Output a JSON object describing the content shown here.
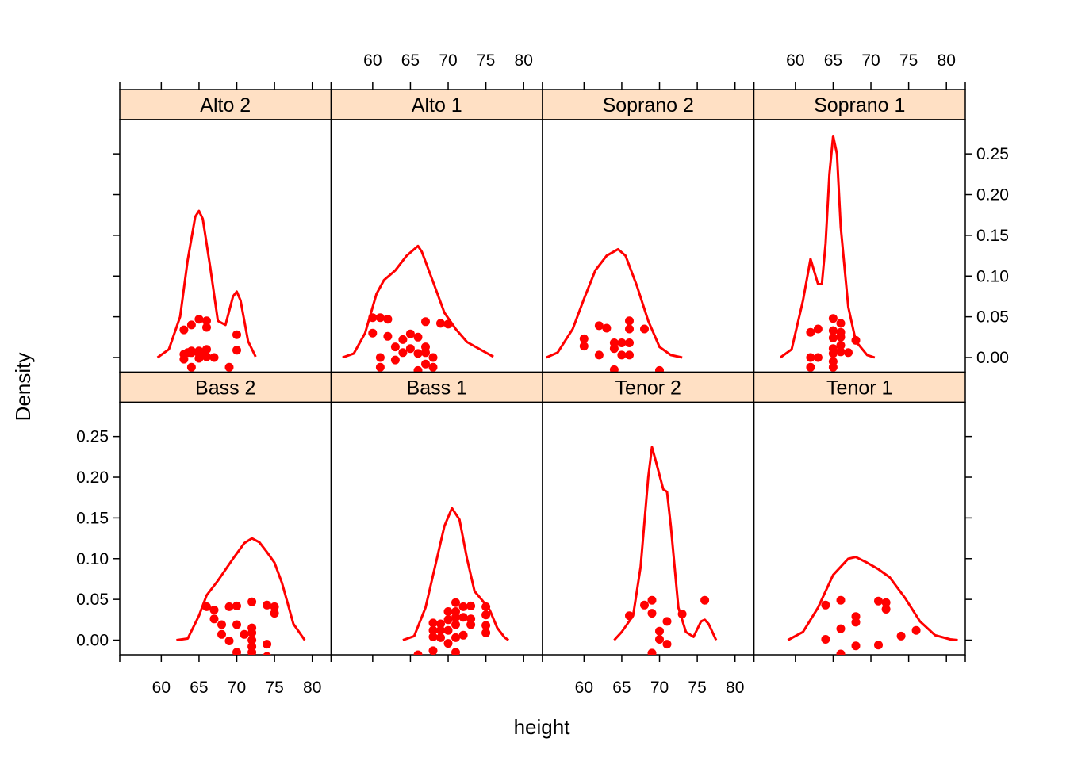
{
  "chart_data": {
    "type": "area",
    "xlabel": "height",
    "ylabel": "Density",
    "xlim": [
      54.5,
      82.5
    ],
    "ylim": [
      -0.018,
      0.292
    ],
    "x_ticks": [
      60,
      65,
      70,
      75,
      80
    ],
    "y_ticks": [
      0.0,
      0.05,
      0.1,
      0.15,
      0.2,
      0.25
    ],
    "x_tick_labels": [
      "60",
      "65",
      "70",
      "75",
      "80"
    ],
    "y_tick_labels": [
      "0.00",
      "0.05",
      "0.10",
      "0.15",
      "0.20",
      "0.25"
    ],
    "colors": {
      "line": "#ff0000",
      "points": "#ff0000",
      "strip": "#ffe0c4",
      "frame": "#000000"
    },
    "grid": false,
    "panels": [
      {
        "name": "Alto 2",
        "density": [
          [
            59.5,
            0.0
          ],
          [
            61,
            0.01
          ],
          [
            62.5,
            0.05
          ],
          [
            63.5,
            0.12
          ],
          [
            64.5,
            0.173
          ],
          [
            65,
            0.18
          ],
          [
            65.5,
            0.17
          ],
          [
            66.5,
            0.11
          ],
          [
            67.5,
            0.045
          ],
          [
            68.5,
            0.04
          ],
          [
            69.5,
            0.075
          ],
          [
            70,
            0.081
          ],
          [
            70.5,
            0.07
          ],
          [
            71.5,
            0.02
          ],
          [
            72.5,
            0.001
          ]
        ],
        "points": [
          [
            63,
            0.004
          ],
          [
            63,
            -0.002
          ],
          [
            63,
            0.034
          ],
          [
            63.5,
            0.006
          ],
          [
            64,
            0.008
          ],
          [
            64,
            0.006
          ],
          [
            64,
            0.04
          ],
          [
            65,
            0.005
          ],
          [
            65,
            0.008
          ],
          [
            65,
            -0.001
          ],
          [
            65,
            0.047
          ],
          [
            65.5,
            0.006
          ],
          [
            66,
            0.01
          ],
          [
            66,
            0.001
          ],
          [
            66,
            0.045
          ],
          [
            66,
            0.037
          ],
          [
            66,
            0.001
          ],
          [
            67,
            0.0
          ],
          [
            64,
            -0.012
          ],
          [
            69,
            -0.012
          ],
          [
            70,
            0.009
          ],
          [
            70,
            0.028
          ]
        ]
      },
      {
        "name": "Alto 1",
        "density": [
          [
            56,
            0.0
          ],
          [
            57.5,
            0.005
          ],
          [
            59,
            0.03
          ],
          [
            60.5,
            0.078
          ],
          [
            61.5,
            0.095
          ],
          [
            63,
            0.107
          ],
          [
            64.5,
            0.125
          ],
          [
            66,
            0.137
          ],
          [
            66.5,
            0.13
          ],
          [
            68,
            0.093
          ],
          [
            69.5,
            0.055
          ],
          [
            71,
            0.035
          ],
          [
            72.5,
            0.019
          ],
          [
            75,
            0.006
          ],
          [
            76,
            0.001
          ]
        ],
        "points": [
          [
            60,
            0.03
          ],
          [
            60,
            0.049
          ],
          [
            61,
            0.049
          ],
          [
            62,
            0.047
          ],
          [
            62,
            0.026
          ],
          [
            61,
            0.0
          ],
          [
            61,
            -0.012
          ],
          [
            63,
            0.013
          ],
          [
            63,
            -0.003
          ],
          [
            64,
            0.022
          ],
          [
            64,
            0.006
          ],
          [
            65,
            0.029
          ],
          [
            65,
            0.011
          ],
          [
            66,
            -0.016
          ],
          [
            66,
            0.025
          ],
          [
            66,
            0.005
          ],
          [
            67,
            0.006
          ],
          [
            67,
            0.013
          ],
          [
            67,
            -0.008
          ],
          [
            67,
            0.044
          ],
          [
            68,
            -0.012
          ],
          [
            68,
            0.0
          ],
          [
            69,
            0.042
          ],
          [
            70,
            0.041
          ]
        ]
      },
      {
        "name": "Soprano 2",
        "density": [
          [
            55,
            0.0
          ],
          [
            56.5,
            0.006
          ],
          [
            58.5,
            0.035
          ],
          [
            60,
            0.072
          ],
          [
            61.5,
            0.107
          ],
          [
            63,
            0.125
          ],
          [
            64.5,
            0.133
          ],
          [
            65.5,
            0.125
          ],
          [
            67,
            0.088
          ],
          [
            68.5,
            0.045
          ],
          [
            70,
            0.013
          ],
          [
            71.5,
            0.003
          ],
          [
            73,
            0.0
          ]
        ],
        "points": [
          [
            60,
            0.023
          ],
          [
            60,
            0.014
          ],
          [
            62,
            0.003
          ],
          [
            62,
            0.039
          ],
          [
            63,
            0.036
          ],
          [
            64,
            0.018
          ],
          [
            64,
            0.011
          ],
          [
            64,
            -0.015
          ],
          [
            65,
            0.018
          ],
          [
            65,
            0.003
          ],
          [
            66,
            0.045
          ],
          [
            66,
            0.035
          ],
          [
            66,
            0.018
          ],
          [
            66,
            0.003
          ],
          [
            68,
            0.035
          ],
          [
            70,
            -0.016
          ]
        ]
      },
      {
        "name": "Soprano 1",
        "density": [
          [
            58,
            0.0
          ],
          [
            59.5,
            0.01
          ],
          [
            61,
            0.07
          ],
          [
            62,
            0.121
          ],
          [
            63,
            0.09
          ],
          [
            63.5,
            0.09
          ],
          [
            64,
            0.14
          ],
          [
            64.5,
            0.225
          ],
          [
            65,
            0.272
          ],
          [
            65.5,
            0.25
          ],
          [
            66,
            0.16
          ],
          [
            67,
            0.062
          ],
          [
            68,
            0.02
          ],
          [
            69.5,
            0.003
          ],
          [
            70.5,
            0.0
          ]
        ],
        "points": [
          [
            62,
            0.031
          ],
          [
            62,
            0.0
          ],
          [
            62,
            -0.012
          ],
          [
            63,
            0.035
          ],
          [
            63,
            0.0
          ],
          [
            65,
            0.048
          ],
          [
            65,
            0.033
          ],
          [
            65,
            0.024
          ],
          [
            65,
            0.011
          ],
          [
            65,
            0.005
          ],
          [
            65,
            -0.005
          ],
          [
            65,
            -0.012
          ],
          [
            66,
            0.042
          ],
          [
            66,
            0.031
          ],
          [
            66,
            0.025
          ],
          [
            66,
            0.015
          ],
          [
            66,
            0.007
          ],
          [
            67,
            0.006
          ],
          [
            68,
            0.021
          ]
        ]
      },
      {
        "name": "Bass 2",
        "density": [
          [
            62,
            0.0
          ],
          [
            63.5,
            0.002
          ],
          [
            65,
            0.03
          ],
          [
            66,
            0.055
          ],
          [
            67.5,
            0.073
          ],
          [
            69.5,
            0.1
          ],
          [
            71,
            0.119
          ],
          [
            72,
            0.125
          ],
          [
            73,
            0.12
          ],
          [
            74,
            0.108
          ],
          [
            75,
            0.095
          ],
          [
            76,
            0.07
          ],
          [
            77.5,
            0.02
          ],
          [
            79,
            0.0
          ]
        ],
        "points": [
          [
            66,
            0.041
          ],
          [
            67,
            0.037
          ],
          [
            67,
            0.026
          ],
          [
            68,
            0.019
          ],
          [
            68,
            0.007
          ],
          [
            69,
            0.041
          ],
          [
            69,
            -0.001
          ],
          [
            70,
            0.042
          ],
          [
            70,
            0.019
          ],
          [
            70,
            -0.015
          ],
          [
            71,
            0.007
          ],
          [
            72,
            0.047
          ],
          [
            72,
            0.015
          ],
          [
            72,
            0.009
          ],
          [
            72,
            0.0
          ],
          [
            72,
            -0.008
          ],
          [
            72,
            -0.015
          ],
          [
            74,
            0.043
          ],
          [
            74,
            -0.005
          ],
          [
            74,
            -0.02
          ],
          [
            75,
            0.041
          ],
          [
            75,
            0.033
          ]
        ]
      },
      {
        "name": "Bass 1",
        "density": [
          [
            64,
            0.0
          ],
          [
            65.5,
            0.005
          ],
          [
            67,
            0.04
          ],
          [
            68.5,
            0.1
          ],
          [
            69.5,
            0.14
          ],
          [
            70.5,
            0.162
          ],
          [
            71.5,
            0.148
          ],
          [
            72.5,
            0.1
          ],
          [
            73.5,
            0.06
          ],
          [
            74.5,
            0.049
          ],
          [
            75.5,
            0.037
          ],
          [
            76.5,
            0.015
          ],
          [
            77.5,
            0.003
          ],
          [
            78,
            0.0
          ]
        ],
        "points": [
          [
            66,
            -0.018
          ],
          [
            68,
            0.021
          ],
          [
            68,
            0.012
          ],
          [
            68,
            0.004
          ],
          [
            68,
            -0.013
          ],
          [
            69,
            0.02
          ],
          [
            69,
            0.012
          ],
          [
            69,
            0.003
          ],
          [
            70,
            0.035
          ],
          [
            70,
            0.025
          ],
          [
            70,
            0.012
          ],
          [
            70,
            -0.004
          ],
          [
            71,
            0.046
          ],
          [
            71,
            0.035
          ],
          [
            71,
            0.028
          ],
          [
            71,
            0.019
          ],
          [
            71,
            0.003
          ],
          [
            71,
            -0.015
          ],
          [
            72,
            0.041
          ],
          [
            72,
            0.028
          ],
          [
            72,
            0.006
          ],
          [
            73,
            0.042
          ],
          [
            73,
            0.026
          ],
          [
            73,
            0.019
          ],
          [
            75,
            0.041
          ],
          [
            75,
            0.031
          ],
          [
            75,
            0.018
          ],
          [
            75,
            0.009
          ],
          [
            75,
            -0.024
          ]
        ]
      },
      {
        "name": "Tenor 2",
        "density": [
          [
            64,
            0.0
          ],
          [
            65,
            0.01
          ],
          [
            66.5,
            0.03
          ],
          [
            67.5,
            0.09
          ],
          [
            68.5,
            0.2
          ],
          [
            69,
            0.237
          ],
          [
            69.5,
            0.22
          ],
          [
            70.5,
            0.185
          ],
          [
            71,
            0.182
          ],
          [
            71.5,
            0.14
          ],
          [
            72.5,
            0.04
          ],
          [
            73.5,
            0.01
          ],
          [
            74.5,
            0.004
          ],
          [
            75.5,
            0.023
          ],
          [
            76,
            0.025
          ],
          [
            76.5,
            0.02
          ],
          [
            77.5,
            0.0
          ]
        ],
        "points": [
          [
            66,
            0.03
          ],
          [
            68,
            0.043
          ],
          [
            69,
            0.049
          ],
          [
            69,
            0.033
          ],
          [
            69,
            -0.016
          ],
          [
            70,
            0.011
          ],
          [
            70,
            0.001
          ],
          [
            71,
            -0.005
          ],
          [
            71,
            0.023
          ],
          [
            73,
            0.032
          ],
          [
            76,
            0.049
          ]
        ]
      },
      {
        "name": "Tenor 1",
        "density": [
          [
            59,
            0.0
          ],
          [
            61,
            0.01
          ],
          [
            63,
            0.04
          ],
          [
            65,
            0.08
          ],
          [
            67,
            0.1
          ],
          [
            68,
            0.102
          ],
          [
            69.5,
            0.095
          ],
          [
            71,
            0.087
          ],
          [
            72.5,
            0.077
          ],
          [
            74.5,
            0.052
          ],
          [
            76.5,
            0.023
          ],
          [
            78.5,
            0.006
          ],
          [
            80.5,
            0.001
          ],
          [
            81.5,
            0.0
          ]
        ],
        "points": [
          [
            64,
            0.043
          ],
          [
            64,
            0.001
          ],
          [
            66,
            0.049
          ],
          [
            66,
            0.014
          ],
          [
            66,
            -0.017
          ],
          [
            68,
            0.029
          ],
          [
            68,
            0.022
          ],
          [
            68,
            -0.007
          ],
          [
            71,
            0.048
          ],
          [
            71,
            -0.006
          ],
          [
            72,
            0.046
          ],
          [
            72,
            0.038
          ],
          [
            74,
            0.005
          ],
          [
            76,
            0.012
          ]
        ]
      }
    ]
  }
}
